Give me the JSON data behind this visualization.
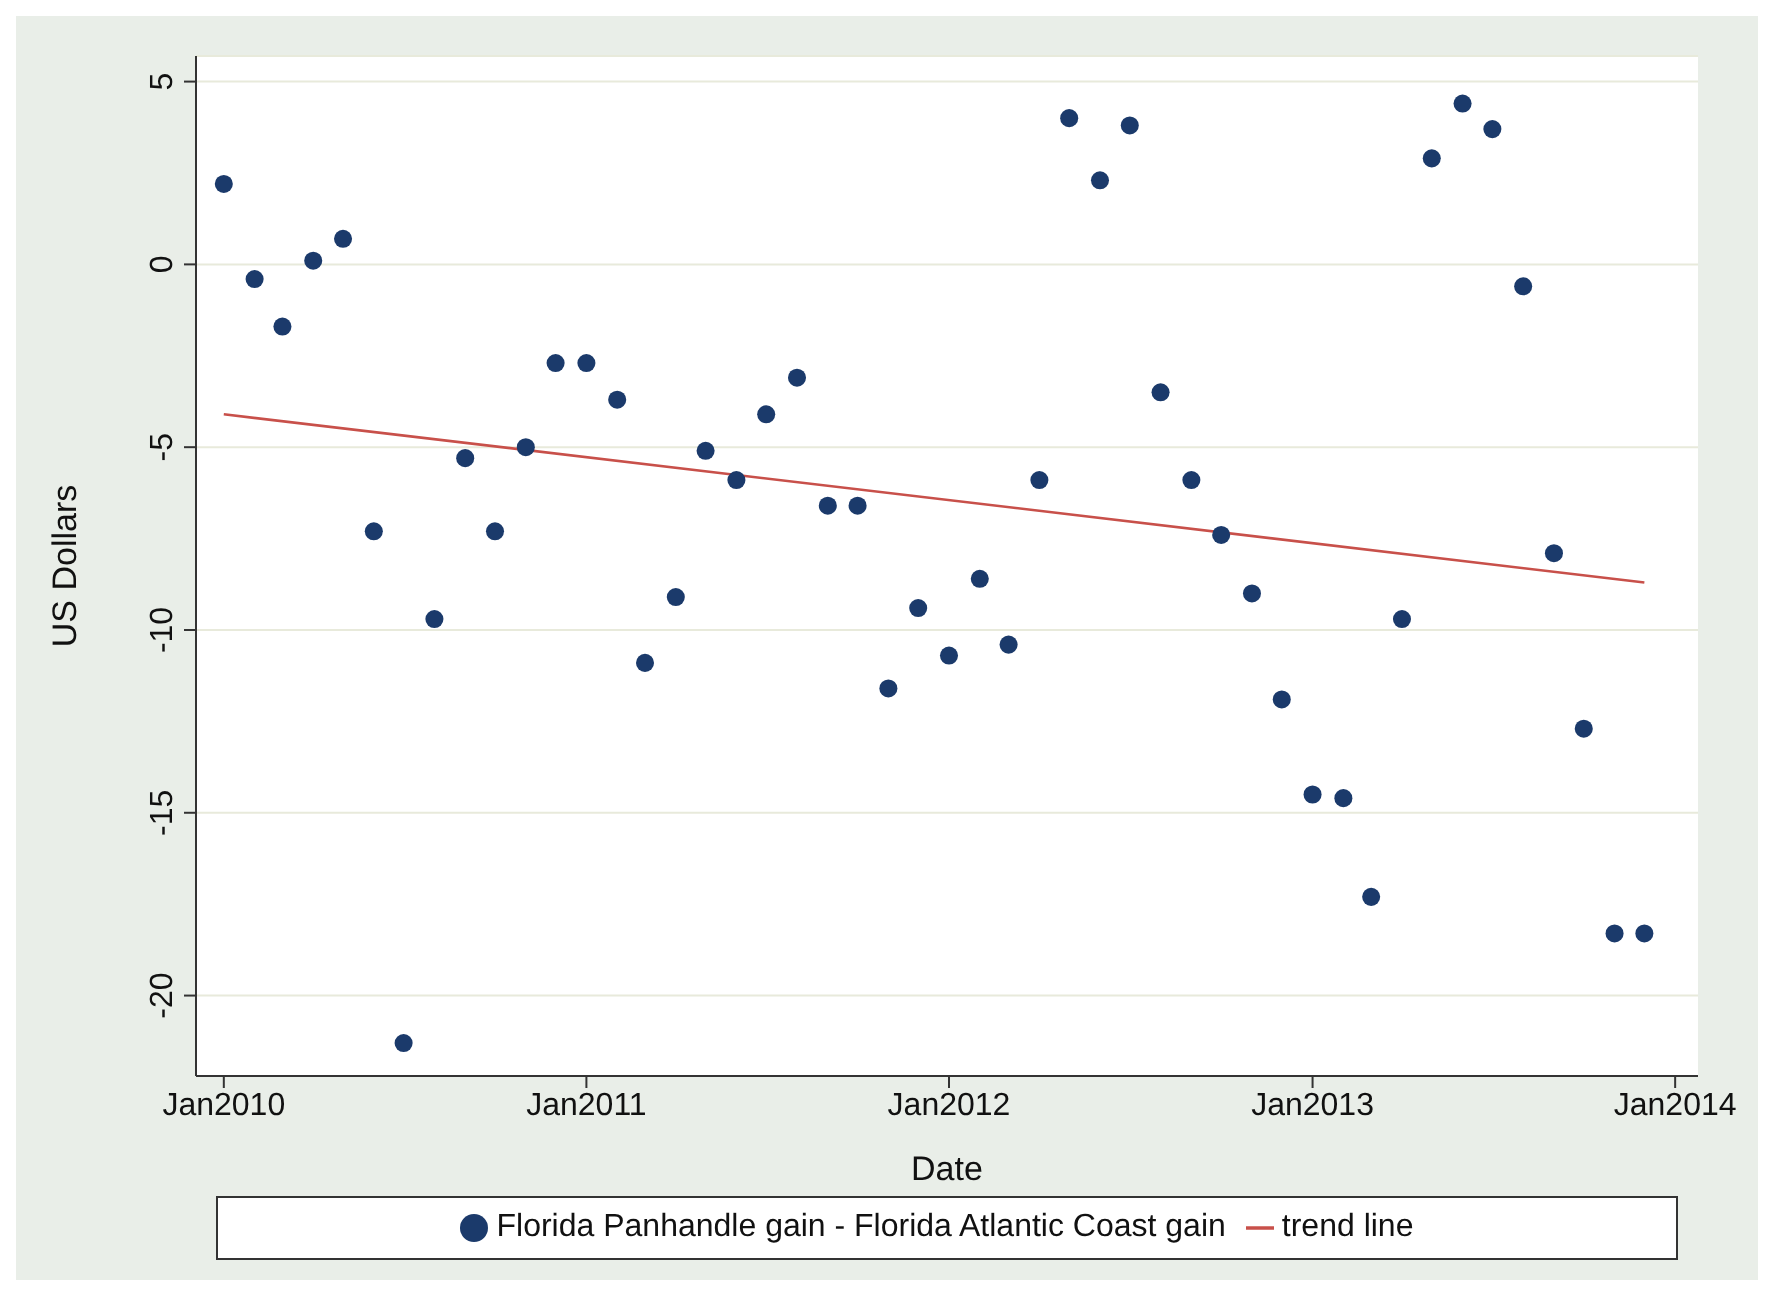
{
  "chart_data": {
    "type": "scatter",
    "xlabel": "Date",
    "ylabel": "US Dollars",
    "x": [
      "2010-01",
      "2010-02",
      "2010-03",
      "2010-04",
      "2010-05",
      "2010-06",
      "2010-07",
      "2010-08",
      "2010-09",
      "2010-10",
      "2010-11",
      "2010-12",
      "2011-01",
      "2011-02",
      "2011-03",
      "2011-04",
      "2011-05",
      "2011-06",
      "2011-07",
      "2011-08",
      "2011-09",
      "2011-10",
      "2011-11",
      "2011-12",
      "2012-01",
      "2012-02",
      "2012-03",
      "2012-04",
      "2012-05",
      "2012-06",
      "2012-07",
      "2012-08",
      "2012-09",
      "2012-10",
      "2012-11",
      "2012-12",
      "2013-01",
      "2013-02",
      "2013-03",
      "2013-04",
      "2013-05",
      "2013-06",
      "2013-07",
      "2013-08",
      "2013-09",
      "2013-10",
      "2013-11",
      "2013-12"
    ],
    "series": [
      {
        "name": "Florida Panhandle gain - Florida Atlantic Coast gain",
        "marker": "circle",
        "color": "#1b3a6b",
        "values": [
          2.2,
          -0.4,
          -1.7,
          0.1,
          0.7,
          -7.3,
          -21.3,
          -9.7,
          -5.3,
          -7.3,
          -5.0,
          -2.7,
          -2.7,
          -3.7,
          -10.9,
          -9.1,
          -5.1,
          -5.9,
          -4.1,
          -3.1,
          -6.6,
          -6.6,
          -11.6,
          -9.4,
          -10.7,
          -8.6,
          -10.4,
          -5.9,
          4.0,
          2.3,
          3.8,
          -3.5,
          -5.9,
          -7.4,
          -9.0,
          -11.9,
          -14.5,
          -14.6,
          -17.3,
          -9.7,
          2.9,
          4.4,
          3.7,
          -0.6,
          -7.9,
          -12.7,
          -18.3,
          -18.3
        ]
      },
      {
        "name": "trend line",
        "type": "line",
        "marker": "none",
        "color": "#c8504a",
        "x": [
          "2010-01",
          "2013-12"
        ],
        "values": [
          -4.1,
          -8.7
        ]
      }
    ],
    "xlim": [
      "2009-12-04",
      "2014-01-24"
    ],
    "xticks": [
      {
        "value": "2010-01-01",
        "label": "Jan2010"
      },
      {
        "value": "2011-01-01",
        "label": "Jan2011"
      },
      {
        "value": "2012-01-01",
        "label": "Jan2012"
      },
      {
        "value": "2013-01-01",
        "label": "Jan2013"
      },
      {
        "value": "2014-01-01",
        "label": "Jan2014"
      }
    ],
    "ylim": [
      -22.2,
      5.7
    ],
    "yticks": [
      -20,
      -15,
      -10,
      -5,
      0,
      5
    ],
    "grid": "y",
    "legend": "bottom",
    "line_style": "solid"
  }
}
